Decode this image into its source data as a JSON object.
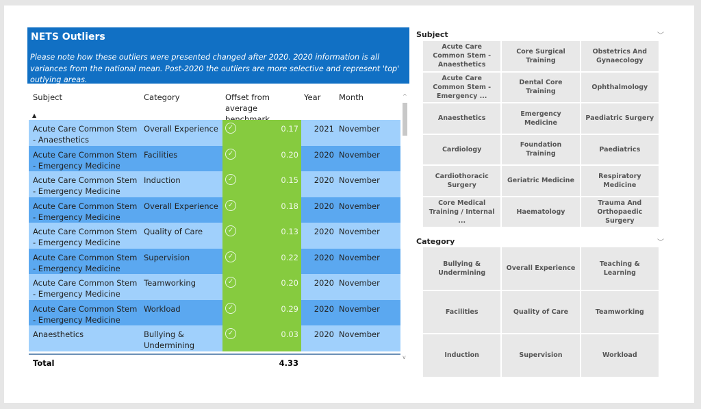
{
  "banner": {
    "title": "NETS Outliers",
    "note": "Please note how these outliers were presented changed after 2020. 2020 information is all variances from the national mean. Post-2020 the outliers are more selective and represent 'top' outlying areas."
  },
  "table": {
    "headers": [
      "Subject",
      "Category",
      "Offset from average benchmark",
      "Year",
      "Month"
    ],
    "rows": [
      [
        "Acute Care Common Stem - Anaesthetics",
        "Overall Experience",
        "0.17",
        "2021",
        "November"
      ],
      [
        "Acute Care Common Stem - Emergency Medicine",
        "Facilities",
        "0.20",
        "2020",
        "November"
      ],
      [
        "Acute Care Common Stem - Emergency Medicine",
        "Induction",
        "0.15",
        "2020",
        "November"
      ],
      [
        "Acute Care Common Stem - Emergency Medicine",
        "Overall Experience",
        "0.18",
        "2020",
        "November"
      ],
      [
        "Acute Care Common Stem - Emergency Medicine",
        "Quality of Care",
        "0.13",
        "2020",
        "November"
      ],
      [
        "Acute Care Common Stem - Emergency Medicine",
        "Supervision",
        "0.22",
        "2020",
        "November"
      ],
      [
        "Acute Care Common Stem - Emergency Medicine",
        "Teamworking",
        "0.20",
        "2020",
        "November"
      ],
      [
        "Acute Care Common Stem - Emergency Medicine",
        "Workload",
        "0.29",
        "2020",
        "November"
      ],
      [
        "Anaesthetics",
        "Bullying & Undermining",
        "0.03",
        "2020",
        "November"
      ]
    ],
    "total_label": "Total",
    "total_value": "4.33",
    "status_icon": "check-circle-icon",
    "status_color": "#86cb3f"
  },
  "subject_slicer": {
    "title": "Subject",
    "items": [
      "Acute Care Common Stem - Anaesthetics",
      "Core Surgical Training",
      "Obstetrics And Gynaecology",
      "Acute Care Common Stem - Emergency ...",
      "Dental Core Training",
      "Ophthalmology",
      "Anaesthetics",
      "Emergency Medicine",
      "Paediatric Surgery",
      "Cardiology",
      "Foundation Training",
      "Paediatrics",
      "Cardiothoracic Surgery",
      "Geriatric Medicine",
      "Respiratory Medicine",
      "Core Medical Training / Internal ...",
      "Haematology",
      "Trauma And Orthopaedic Surgery"
    ]
  },
  "category_slicer": {
    "title": "Category",
    "items": [
      "Bullying & Undermining",
      "Overall Experience",
      "Teaching & Learning",
      "Facilities",
      "Quality of Care",
      "Teamworking",
      "Induction",
      "Supervision",
      "Workload"
    ]
  }
}
